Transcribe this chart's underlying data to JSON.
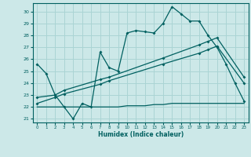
{
  "xlabel": "Humidex (Indice chaleur)",
  "bg_color": "#cce8e8",
  "grid_color": "#aad4d4",
  "line_color": "#006060",
  "xlim": [
    -0.5,
    23.5
  ],
  "ylim": [
    20.7,
    30.7
  ],
  "yticks": [
    21,
    22,
    23,
    24,
    25,
    26,
    27,
    28,
    29,
    30
  ],
  "xticks": [
    0,
    1,
    2,
    3,
    4,
    5,
    6,
    7,
    8,
    9,
    10,
    11,
    12,
    13,
    14,
    15,
    16,
    17,
    18,
    19,
    20,
    21,
    22,
    23
  ],
  "line1_x": [
    0,
    1,
    2,
    3,
    4,
    5,
    6,
    7,
    8,
    9,
    10,
    11,
    12,
    13,
    14,
    15,
    16,
    17,
    18,
    19,
    20,
    21,
    22,
    23
  ],
  "line1_y": [
    25.6,
    24.8,
    23.0,
    22.0,
    21.0,
    22.3,
    22.0,
    26.6,
    25.3,
    25.0,
    28.2,
    28.4,
    28.3,
    28.2,
    29.0,
    30.4,
    29.8,
    29.2,
    29.2,
    28.0,
    27.0,
    25.6,
    24.0,
    22.5
  ],
  "line2_x": [
    0,
    2,
    3,
    7,
    8,
    14,
    18,
    19,
    20,
    23
  ],
  "line2_y": [
    22.8,
    23.0,
    23.4,
    24.3,
    24.5,
    26.1,
    27.2,
    27.5,
    27.8,
    24.5
  ],
  "line3_x": [
    0,
    2,
    3,
    7,
    8,
    14,
    18,
    19,
    20,
    23
  ],
  "line3_y": [
    22.3,
    22.8,
    23.1,
    23.9,
    24.2,
    25.6,
    26.5,
    26.8,
    27.1,
    24.0
  ],
  "line4_x": [
    0,
    1,
    2,
    3,
    4,
    5,
    6,
    7,
    8,
    9,
    10,
    11,
    12,
    13,
    14,
    15,
    16,
    17,
    18,
    19,
    20,
    21,
    22,
    23
  ],
  "line4_y": [
    22.0,
    22.0,
    22.0,
    22.0,
    22.0,
    22.0,
    22.0,
    22.0,
    22.0,
    22.0,
    22.1,
    22.1,
    22.1,
    22.2,
    22.2,
    22.3,
    22.3,
    22.3,
    22.3,
    22.3,
    22.3,
    22.3,
    22.3,
    22.3
  ]
}
